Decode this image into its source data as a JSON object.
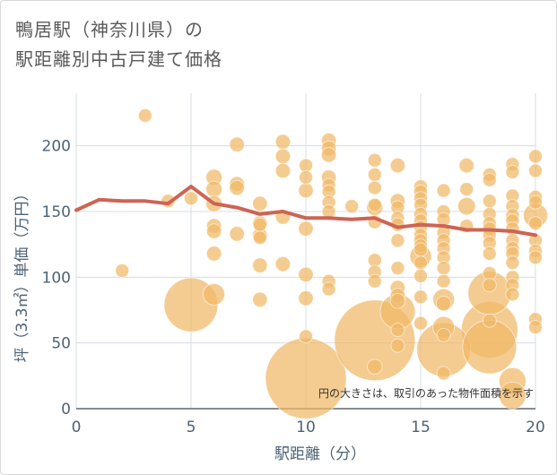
{
  "title_line1": "鴨居駅（神奈川県）の",
  "title_line2": "駅距離別中古戸建て価格",
  "chart_data": {
    "type": "scatter",
    "title": "鴨居駅（神奈川県）の駅距離別中古戸建て価格",
    "xlabel": "駅距離（分）",
    "ylabel": "坪（3.3㎡）単価（万円）",
    "xlim": [
      0,
      20
    ],
    "ylim": [
      0,
      240
    ],
    "xticks": [
      0,
      5,
      10,
      15,
      20
    ],
    "yticks": [
      0,
      50,
      100,
      150,
      200
    ],
    "annotation": "円の大きさは、取引のあった物件面積を示す",
    "colors": {
      "bubble": "#f0b866",
      "line": "#cd6454",
      "grid": "#d6dce3",
      "tick_text": "#4e6275",
      "axis_title": "#4e6275"
    },
    "scatter_points": [
      {
        "x": 2,
        "y": 105,
        "s": 1
      },
      {
        "x": 3,
        "y": 223,
        "s": 1
      },
      {
        "x": 4,
        "y": 158,
        "s": 1
      },
      {
        "x": 5,
        "y": 160,
        "s": 1
      },
      {
        "x": 5,
        "y": 79,
        "s": 4
      },
      {
        "x": 6,
        "y": 176,
        "s": 1.2
      },
      {
        "x": 6,
        "y": 167,
        "s": 1.2
      },
      {
        "x": 6,
        "y": 156,
        "s": 1.2
      },
      {
        "x": 6,
        "y": 139,
        "s": 1.1
      },
      {
        "x": 6,
        "y": 135,
        "s": 1.1
      },
      {
        "x": 6,
        "y": 118,
        "s": 1.1
      },
      {
        "x": 6,
        "y": 87,
        "s": 1.6
      },
      {
        "x": 7,
        "y": 201,
        "s": 1.1
      },
      {
        "x": 7,
        "y": 171,
        "s": 1.1
      },
      {
        "x": 7,
        "y": 168,
        "s": 1.1
      },
      {
        "x": 7,
        "y": 133,
        "s": 1.1
      },
      {
        "x": 8,
        "y": 156,
        "s": 1.1
      },
      {
        "x": 8,
        "y": 141,
        "s": 1.1
      },
      {
        "x": 8,
        "y": 140,
        "s": 1
      },
      {
        "x": 8,
        "y": 132,
        "s": 1.1
      },
      {
        "x": 8,
        "y": 130,
        "s": 1
      },
      {
        "x": 8,
        "y": 109,
        "s": 1.1
      },
      {
        "x": 8,
        "y": 83,
        "s": 1.1
      },
      {
        "x": 9,
        "y": 203,
        "s": 1.1
      },
      {
        "x": 9,
        "y": 192,
        "s": 1.1
      },
      {
        "x": 9,
        "y": 181,
        "s": 1.1
      },
      {
        "x": 9,
        "y": 146,
        "s": 1.1
      },
      {
        "x": 9,
        "y": 110,
        "s": 1.1
      },
      {
        "x": 10,
        "y": 185,
        "s": 1
      },
      {
        "x": 10,
        "y": 176,
        "s": 1
      },
      {
        "x": 10,
        "y": 166,
        "s": 1.1
      },
      {
        "x": 10,
        "y": 137,
        "s": 1.1
      },
      {
        "x": 10,
        "y": 102,
        "s": 1.1
      },
      {
        "x": 10,
        "y": 84,
        "s": 1.1
      },
      {
        "x": 10,
        "y": 55,
        "s": 1
      },
      {
        "x": 10,
        "y": 23,
        "s": 6
      },
      {
        "x": 11,
        "y": 204,
        "s": 1.1
      },
      {
        "x": 11,
        "y": 198,
        "s": 1.1
      },
      {
        "x": 11,
        "y": 193,
        "s": 1.1
      },
      {
        "x": 11,
        "y": 176,
        "s": 1.1
      },
      {
        "x": 11,
        "y": 170,
        "s": 1
      },
      {
        "x": 11,
        "y": 165,
        "s": 1
      },
      {
        "x": 11,
        "y": 157,
        "s": 1
      },
      {
        "x": 11,
        "y": 150,
        "s": 1
      },
      {
        "x": 11,
        "y": 97,
        "s": 1
      },
      {
        "x": 11,
        "y": 91,
        "s": 1
      },
      {
        "x": 12,
        "y": 154,
        "s": 1
      },
      {
        "x": 13,
        "y": 189,
        "s": 1
      },
      {
        "x": 13,
        "y": 178,
        "s": 1
      },
      {
        "x": 13,
        "y": 168,
        "s": 1
      },
      {
        "x": 13,
        "y": 155,
        "s": 1
      },
      {
        "x": 13,
        "y": 153,
        "s": 1.2
      },
      {
        "x": 13,
        "y": 142,
        "s": 1
      },
      {
        "x": 13,
        "y": 113,
        "s": 1
      },
      {
        "x": 13,
        "y": 104,
        "s": 1
      },
      {
        "x": 13,
        "y": 97,
        "s": 1
      },
      {
        "x": 13,
        "y": 52,
        "s": 6
      },
      {
        "x": 13,
        "y": 32,
        "s": 1.1
      },
      {
        "x": 14,
        "y": 185,
        "s": 1.1
      },
      {
        "x": 14,
        "y": 158,
        "s": 1.1
      },
      {
        "x": 14,
        "y": 153,
        "s": 1
      },
      {
        "x": 14,
        "y": 145,
        "s": 1
      },
      {
        "x": 14,
        "y": 140,
        "s": 1
      },
      {
        "x": 14,
        "y": 128,
        "s": 1
      },
      {
        "x": 14,
        "y": 107,
        "s": 1
      },
      {
        "x": 14,
        "y": 92,
        "s": 1.1
      },
      {
        "x": 14,
        "y": 86,
        "s": 1.1
      },
      {
        "x": 14,
        "y": 82,
        "s": 1.1
      },
      {
        "x": 14,
        "y": 74,
        "s": 2.6
      },
      {
        "x": 14,
        "y": 60,
        "s": 1
      },
      {
        "x": 14,
        "y": 48,
        "s": 1
      },
      {
        "x": 15,
        "y": 169,
        "s": 1
      },
      {
        "x": 15,
        "y": 165,
        "s": 1
      },
      {
        "x": 15,
        "y": 160,
        "s": 1
      },
      {
        "x": 15,
        "y": 155,
        "s": 1
      },
      {
        "x": 15,
        "y": 148,
        "s": 1
      },
      {
        "x": 15,
        "y": 143,
        "s": 1
      },
      {
        "x": 15,
        "y": 138,
        "s": 1
      },
      {
        "x": 15,
        "y": 132,
        "s": 1
      },
      {
        "x": 15,
        "y": 128,
        "s": 1
      },
      {
        "x": 15,
        "y": 124,
        "s": 1
      },
      {
        "x": 15,
        "y": 121,
        "s": 1
      },
      {
        "x": 15,
        "y": 116,
        "s": 1.6
      },
      {
        "x": 15,
        "y": 111,
        "s": 1
      },
      {
        "x": 15,
        "y": 101,
        "s": 1
      },
      {
        "x": 15,
        "y": 85,
        "s": 1
      },
      {
        "x": 15,
        "y": 65,
        "s": 1
      },
      {
        "x": 16,
        "y": 166,
        "s": 1
      },
      {
        "x": 16,
        "y": 150,
        "s": 1
      },
      {
        "x": 16,
        "y": 144,
        "s": 1
      },
      {
        "x": 16,
        "y": 134,
        "s": 1
      },
      {
        "x": 16,
        "y": 128,
        "s": 1
      },
      {
        "x": 16,
        "y": 122,
        "s": 1
      },
      {
        "x": 16,
        "y": 115,
        "s": 1
      },
      {
        "x": 16,
        "y": 107,
        "s": 1
      },
      {
        "x": 16,
        "y": 97,
        "s": 1
      },
      {
        "x": 16,
        "y": 83,
        "s": 1.6
      },
      {
        "x": 16,
        "y": 80,
        "s": 1.1
      },
      {
        "x": 16,
        "y": 62,
        "s": 1.6
      },
      {
        "x": 16,
        "y": 56,
        "s": 1
      },
      {
        "x": 16,
        "y": 45,
        "s": 4
      },
      {
        "x": 16,
        "y": 27,
        "s": 1
      },
      {
        "x": 17,
        "y": 185,
        "s": 1.1
      },
      {
        "x": 17,
        "y": 167,
        "s": 1
      },
      {
        "x": 17,
        "y": 154,
        "s": 1.3
      },
      {
        "x": 17,
        "y": 139,
        "s": 1
      },
      {
        "x": 18,
        "y": 178,
        "s": 1
      },
      {
        "x": 18,
        "y": 174,
        "s": 1
      },
      {
        "x": 18,
        "y": 158,
        "s": 1
      },
      {
        "x": 18,
        "y": 148,
        "s": 1
      },
      {
        "x": 18,
        "y": 141,
        "s": 1
      },
      {
        "x": 18,
        "y": 137,
        "s": 1
      },
      {
        "x": 18,
        "y": 132,
        "s": 1
      },
      {
        "x": 18,
        "y": 126,
        "s": 1
      },
      {
        "x": 18,
        "y": 118,
        "s": 1
      },
      {
        "x": 18,
        "y": 103,
        "s": 1
      },
      {
        "x": 18,
        "y": 94,
        "s": 1
      },
      {
        "x": 18,
        "y": 88,
        "s": 3.2
      },
      {
        "x": 18,
        "y": 67,
        "s": 1
      },
      {
        "x": 18,
        "y": 60,
        "s": 4.2
      },
      {
        "x": 18,
        "y": 47,
        "s": 4
      },
      {
        "x": 19,
        "y": 186,
        "s": 1
      },
      {
        "x": 19,
        "y": 180,
        "s": 1
      },
      {
        "x": 19,
        "y": 162,
        "s": 1
      },
      {
        "x": 19,
        "y": 154,
        "s": 1
      },
      {
        "x": 19,
        "y": 147,
        "s": 1
      },
      {
        "x": 19,
        "y": 143,
        "s": 1
      },
      {
        "x": 19,
        "y": 137,
        "s": 1
      },
      {
        "x": 19,
        "y": 128,
        "s": 1
      },
      {
        "x": 19,
        "y": 122,
        "s": 1
      },
      {
        "x": 19,
        "y": 118,
        "s": 1
      },
      {
        "x": 19,
        "y": 111,
        "s": 1
      },
      {
        "x": 19,
        "y": 100,
        "s": 1
      },
      {
        "x": 19,
        "y": 94,
        "s": 1
      },
      {
        "x": 19,
        "y": 87,
        "s": 1
      },
      {
        "x": 19,
        "y": 21,
        "s": 2
      },
      {
        "x": 19,
        "y": 10,
        "s": 2
      },
      {
        "x": 20,
        "y": 192,
        "s": 1
      },
      {
        "x": 20,
        "y": 181,
        "s": 1
      },
      {
        "x": 20,
        "y": 161,
        "s": 1
      },
      {
        "x": 20,
        "y": 157,
        "s": 1
      },
      {
        "x": 20,
        "y": 147,
        "s": 1.8
      },
      {
        "x": 20,
        "y": 141,
        "s": 1
      },
      {
        "x": 20,
        "y": 128,
        "s": 1
      },
      {
        "x": 20,
        "y": 120,
        "s": 1
      },
      {
        "x": 20,
        "y": 115,
        "s": 1
      },
      {
        "x": 20,
        "y": 68,
        "s": 1
      },
      {
        "x": 20,
        "y": 62,
        "s": 1
      }
    ],
    "trend_line": {
      "x": [
        0,
        1,
        2,
        3,
        4,
        5,
        6,
        7,
        8,
        9,
        10,
        11,
        12,
        13,
        14,
        15,
        16,
        17,
        18,
        19,
        20
      ],
      "y": [
        151,
        159,
        158,
        158,
        156,
        169,
        156,
        153,
        148,
        150,
        145,
        145,
        144,
        145,
        138,
        140,
        139,
        136,
        136,
        135,
        132
      ]
    }
  }
}
